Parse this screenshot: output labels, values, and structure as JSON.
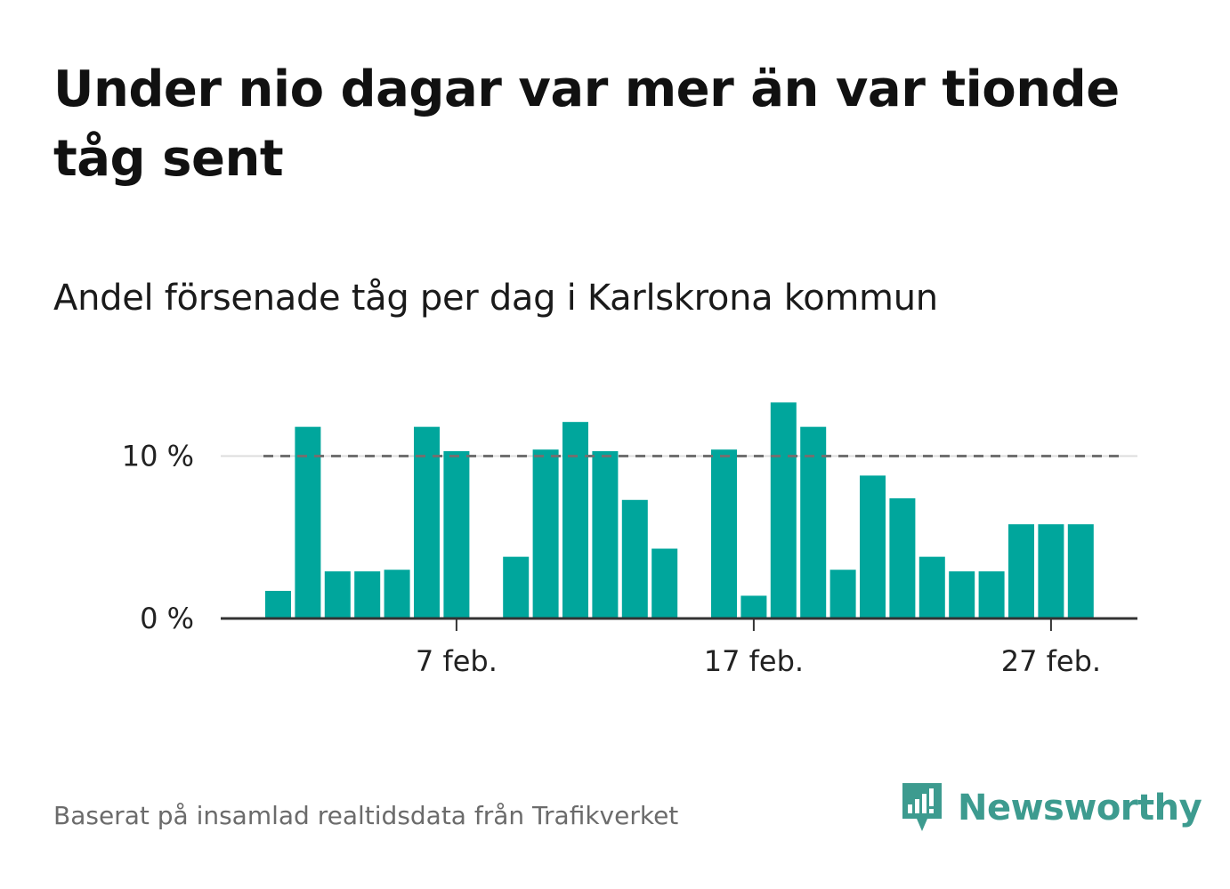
{
  "title": "Under nio dagar var mer än var tionde tåg sent",
  "subtitle": "Andel försenade tåg per dag i Karlskrona kommun",
  "source": "Baserat på insamlad realtidsdata från Trafikverket",
  "brand": {
    "name": "Newsworthy",
    "logo_icon": "newsworthy-logo-icon"
  },
  "colors": {
    "bar": "#00a69c",
    "reference": "#707070",
    "axis": "#333333",
    "grid": "#dddddd",
    "brand": "#3d9b8f"
  },
  "chart_data": {
    "type": "bar",
    "x": [
      "2024-02-01",
      "2024-02-02",
      "2024-02-03",
      "2024-02-04",
      "2024-02-05",
      "2024-02-06",
      "2024-02-07",
      "2024-02-08",
      "2024-02-09",
      "2024-02-10",
      "2024-02-11",
      "2024-02-12",
      "2024-02-13",
      "2024-02-14",
      "2024-02-15",
      "2024-02-16",
      "2024-02-17",
      "2024-02-18",
      "2024-02-19",
      "2024-02-20",
      "2024-02-21",
      "2024-02-22",
      "2024-02-23",
      "2024-02-24",
      "2024-02-25",
      "2024-02-26",
      "2024-02-27",
      "2024-02-28",
      "2024-02-29"
    ],
    "values": [
      1.7,
      11.8,
      2.9,
      2.9,
      3.0,
      11.8,
      10.3,
      null,
      3.8,
      10.4,
      12.1,
      10.3,
      7.3,
      4.3,
      null,
      10.4,
      1.4,
      13.3,
      11.8,
      3.0,
      8.8,
      7.4,
      3.8,
      2.9,
      2.9,
      5.8,
      5.8,
      5.8,
      null
    ],
    "reference_line": 10,
    "reference_style": "dashed",
    "ylim": [
      0,
      14
    ],
    "yticks": [
      {
        "value": 0,
        "label": "0 %"
      },
      {
        "value": 10,
        "label": "10 %"
      }
    ],
    "xticks": [
      {
        "x": "2024-02-07",
        "label": "7 feb."
      },
      {
        "x": "2024-02-17",
        "label": "17 feb."
      },
      {
        "x": "2024-02-27",
        "label": "27 feb."
      }
    ],
    "grid": "horizontal"
  }
}
